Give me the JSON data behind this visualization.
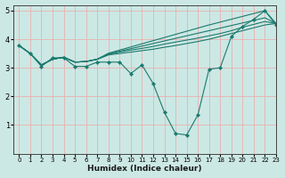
{
  "xlabel": "Humidex (Indice chaleur)",
  "xlim": [
    -0.5,
    23
  ],
  "ylim": [
    0,
    5.2
  ],
  "xticks": [
    0,
    1,
    2,
    3,
    4,
    5,
    6,
    7,
    8,
    9,
    10,
    11,
    12,
    13,
    14,
    15,
    16,
    17,
    18,
    19,
    20,
    21,
    22,
    23
  ],
  "yticks": [
    1,
    2,
    3,
    4,
    5
  ],
  "line_color": "#1a7a6e",
  "bg_color": "#cce8e4",
  "grid_color": "#e8b0b0",
  "main_line": [
    3.78,
    3.5,
    3.05,
    3.35,
    3.35,
    3.05,
    3.05,
    3.2,
    3.2,
    3.2,
    2.8,
    3.1,
    2.45,
    1.45,
    0.7,
    0.65,
    1.35,
    2.95,
    3.0,
    4.1,
    4.45,
    4.7,
    5.0,
    4.5
  ],
  "trend_lines": [
    [
      3.78,
      3.5,
      3.1,
      3.3,
      3.37,
      3.2,
      3.22,
      3.3,
      3.45,
      3.5,
      3.55,
      3.6,
      3.65,
      3.72,
      3.78,
      3.85,
      3.92,
      4.0,
      4.1,
      4.2,
      4.3,
      4.4,
      4.5,
      4.55
    ],
    [
      3.78,
      3.5,
      3.1,
      3.3,
      3.37,
      3.2,
      3.22,
      3.3,
      3.47,
      3.55,
      3.62,
      3.68,
      3.75,
      3.83,
      3.9,
      3.97,
      4.04,
      4.12,
      4.2,
      4.3,
      4.42,
      4.52,
      4.62,
      4.55
    ],
    [
      3.78,
      3.5,
      3.1,
      3.3,
      3.37,
      3.2,
      3.22,
      3.3,
      3.49,
      3.58,
      3.67,
      3.76,
      3.85,
      3.94,
      4.03,
      4.12,
      4.21,
      4.3,
      4.39,
      4.48,
      4.57,
      4.66,
      4.75,
      4.55
    ],
    [
      3.78,
      3.5,
      3.1,
      3.3,
      3.37,
      3.2,
      3.22,
      3.3,
      3.51,
      3.62,
      3.73,
      3.84,
      3.95,
      4.06,
      4.17,
      4.28,
      4.39,
      4.5,
      4.6,
      4.7,
      4.8,
      4.9,
      5.0,
      4.55
    ]
  ]
}
